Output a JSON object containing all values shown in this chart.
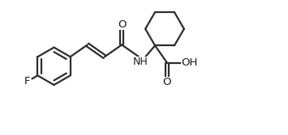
{
  "bg_color": "#ffffff",
  "line_color": "#2d2d2d",
  "line_width": 1.6,
  "font_size_atoms": 9,
  "figsize": [
    3.55,
    1.67
  ],
  "dpi": 100,
  "xlim": [
    0,
    10.5
  ],
  "ylim": [
    0,
    5.0
  ]
}
